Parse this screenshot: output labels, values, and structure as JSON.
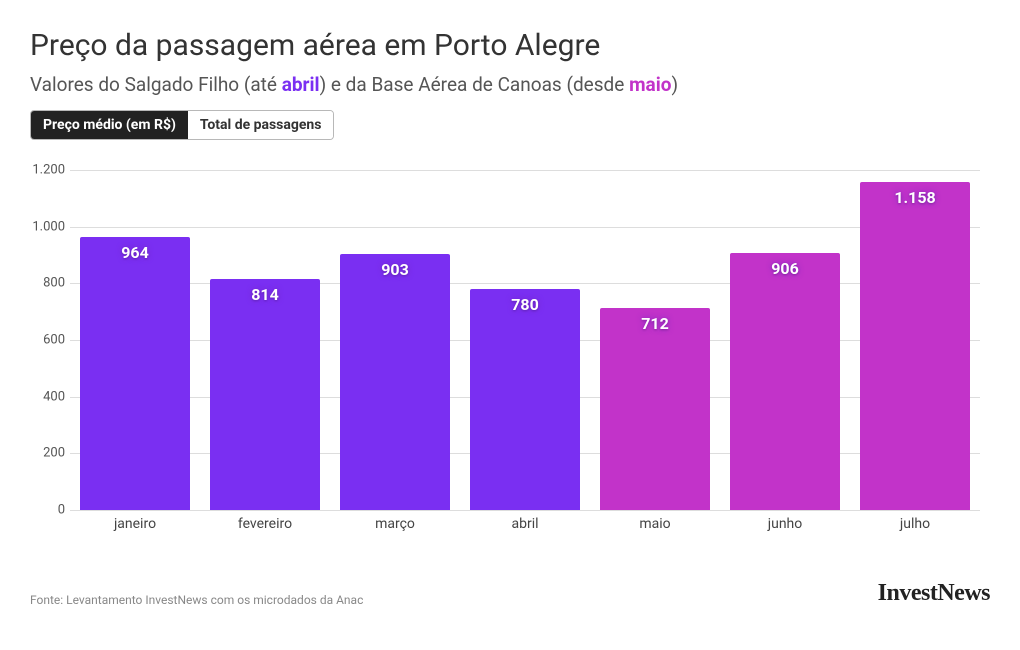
{
  "title": "Preço da passagem aérea em Porto Alegre",
  "subtitle_parts": {
    "p1": "Valores do Salgado Filho (até ",
    "hl1": "abril",
    "p2": ") e da Base Aérea de Canoas (desde ",
    "hl2": "maio",
    "p3": ")"
  },
  "highlight_colors": {
    "abril": "#7a2ff2",
    "maio": "#c233c9"
  },
  "tabs": {
    "active": "Preço médio (em R$)",
    "inactive": "Total de passagens"
  },
  "chart": {
    "type": "bar",
    "ylim": [
      0,
      1200
    ],
    "yticks": [
      0,
      200,
      400,
      600,
      800,
      1000,
      1200
    ],
    "ytick_labels": [
      "0",
      "200",
      "400",
      "600",
      "800",
      "1.000",
      "1.200"
    ],
    "grid_color": "#dddddd",
    "background_color": "#ffffff",
    "categories": [
      "janeiro",
      "fevereiro",
      "março",
      "abril",
      "maio",
      "junho",
      "julho"
    ],
    "values": [
      964,
      814,
      903,
      780,
      712,
      906,
      1158
    ],
    "value_labels": [
      "964",
      "814",
      "903",
      "780",
      "712",
      "906",
      "1.158"
    ],
    "bar_colors": [
      "#7a2ff2",
      "#7a2ff2",
      "#7a2ff2",
      "#7a2ff2",
      "#c233c9",
      "#c233c9",
      "#c233c9"
    ],
    "bar_width_pct": 84,
    "label_fontsize": 16,
    "axis_fontsize": 13
  },
  "source": "Fonte: Levantamento InvestNews com os microdados da Anac",
  "brand": "InvestNews"
}
